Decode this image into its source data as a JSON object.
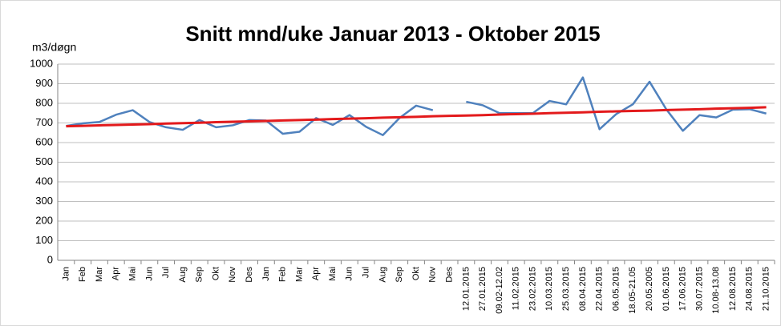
{
  "chart_data": {
    "type": "line",
    "title": "Snitt mnd/uke Januar 2013 - Oktober 2015",
    "y_label": "m3/døgn",
    "categories": [
      "Jan",
      "Feb",
      "Mar",
      "Apr",
      "Mai",
      "Jun",
      "Jul",
      "Aug",
      "Sep",
      "Okt",
      "Nov",
      "Des",
      "Jan",
      "Feb",
      "Mar",
      "Apr",
      "Mai",
      "Jun",
      "Jul",
      "Aug",
      "Sep",
      "Okt",
      "Nov",
      "Des",
      "12.01.2015",
      "27.01.2015",
      "09.02-12.02",
      "11.02.2015",
      "23.02.2015",
      "10.03.2015",
      "25.03.2015",
      "08.04.2015",
      "22.04.2015",
      "06.05.2015",
      "18.05-21.05",
      "20.05.2005",
      "01.06.2015",
      "17.06.2015",
      "30.07.2015",
      "10.08-13.08",
      "12.08.2015",
      "24.08.2015",
      "21.10.2015"
    ],
    "series": [
      {
        "color": "#4f81bd",
        "values": [
          685,
          698,
          705,
          742,
          765,
          705,
          678,
          665,
          715,
          678,
          688,
          715,
          712,
          645,
          655,
          725,
          690,
          740,
          680,
          638,
          725,
          788,
          765,
          null,
          808,
          790,
          750,
          750,
          750,
          812,
          795,
          932,
          668,
          745,
          795,
          910,
          770,
          660,
          740,
          728,
          768,
          770,
          748
        ]
      },
      {
        "color": "#e31a1c",
        "values": [
          683,
          685,
          688,
          690,
          692,
          694,
          697,
          699,
          701,
          704,
          706,
          708,
          710,
          713,
          715,
          717,
          720,
          722,
          724,
          727,
          729,
          731,
          734,
          736,
          738,
          740,
          743,
          745,
          747,
          750,
          752,
          754,
          757,
          759,
          761,
          763,
          766,
          768,
          770,
          773,
          775,
          777,
          780
        ]
      }
    ],
    "ylim": [
      0,
      1000
    ],
    "yticks": [
      0,
      100,
      200,
      300,
      400,
      500,
      600,
      700,
      800,
      900,
      1000
    ],
    "grid": true
  }
}
